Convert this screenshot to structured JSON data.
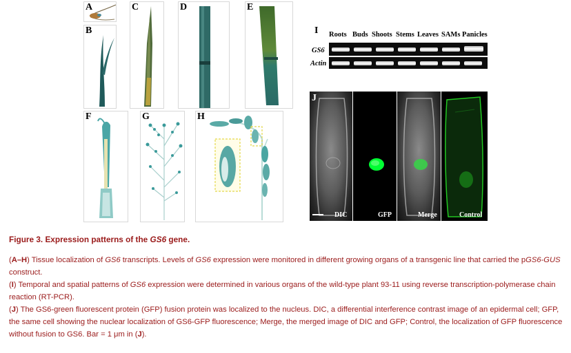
{
  "panels": {
    "A": "A",
    "B": "B",
    "C": "C",
    "D": "D",
    "E": "E",
    "F": "F",
    "G": "G",
    "H": "H",
    "I": "I",
    "J": "J"
  },
  "gel": {
    "columns": [
      "Roots",
      "Buds",
      "Shoots",
      "Stems",
      "Leaves",
      "SAMs",
      "Panicles"
    ],
    "rows": [
      "GS6",
      "Actin"
    ]
  },
  "micro": {
    "labels": [
      "DIC",
      "GFP",
      "Merge",
      "Control"
    ]
  },
  "caption": {
    "title_prefix": "Figure 3.  Expression patterns of the ",
    "title_gene": "GS6",
    "title_suffix": " gene.",
    "p1": {
      "label": "A–H",
      "t1": " Tissue localization of ",
      "g1": "GS6",
      "t2": " transcripts. Levels of ",
      "g2": "GS6",
      "t3": " expression were monitored in different growing organs of a transgenic line that carried the p",
      "g3": "GS6-GUS",
      "t4": " construct."
    },
    "p2": {
      "label": "I",
      "t1": " Temporal and spatial patterns of ",
      "g1": "GS6",
      "t2": " expression were determined in various organs of the wild-type plant 93-11 using reverse transcription-polymerase chain reaction (RT-PCR)."
    },
    "p3": {
      "label": "J",
      "t1": " The GS6-green fluorescent protein (GFP) fusion protein was localized to the nucleus. DIC, a differential interference contrast image of an epidermal cell; GFP, the same cell showing the nuclear localization of GS6-GFP fluorescence; Merge, the merged image of DIC and GFP; Control, the localization of GFP fluorescence without fusion to GS6. Bar = 1 μm in (",
      "label2": "J",
      "t2": ")."
    }
  }
}
